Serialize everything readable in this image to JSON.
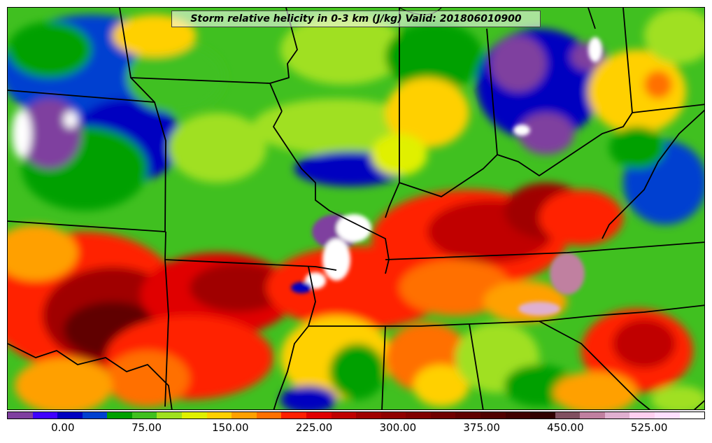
{
  "title": "Storm relative helicity in 0-3 km (J/kg) Valid: 201806010900",
  "colorbar": {
    "colors": [
      "#7f3f9f",
      "#3f00ff",
      "#0000c0",
      "#0040d0",
      "#00a000",
      "#40c020",
      "#a0e020",
      "#e0f000",
      "#ffd000",
      "#ffa000",
      "#ff7000",
      "#ff2000",
      "#e00000",
      "#c00000",
      "#a00000",
      "#900000",
      "#800000",
      "#700000",
      "#600000",
      "#500000",
      "#400000",
      "#300000",
      "#805060",
      "#c080a0",
      "#e0b0d0",
      "#ffd0f0",
      "#ffe0ff",
      "#ffffff"
    ],
    "min": -50,
    "max": 575,
    "ticks": [
      "0.00",
      "75.00",
      "150.00",
      "225.00",
      "300.00",
      "375.00",
      "450.00",
      "525.00"
    ],
    "tick_values": [
      0,
      75,
      150,
      225,
      300,
      375,
      450,
      525
    ]
  },
  "map": {
    "background_color": "#40c020",
    "border_color": "#000000"
  }
}
